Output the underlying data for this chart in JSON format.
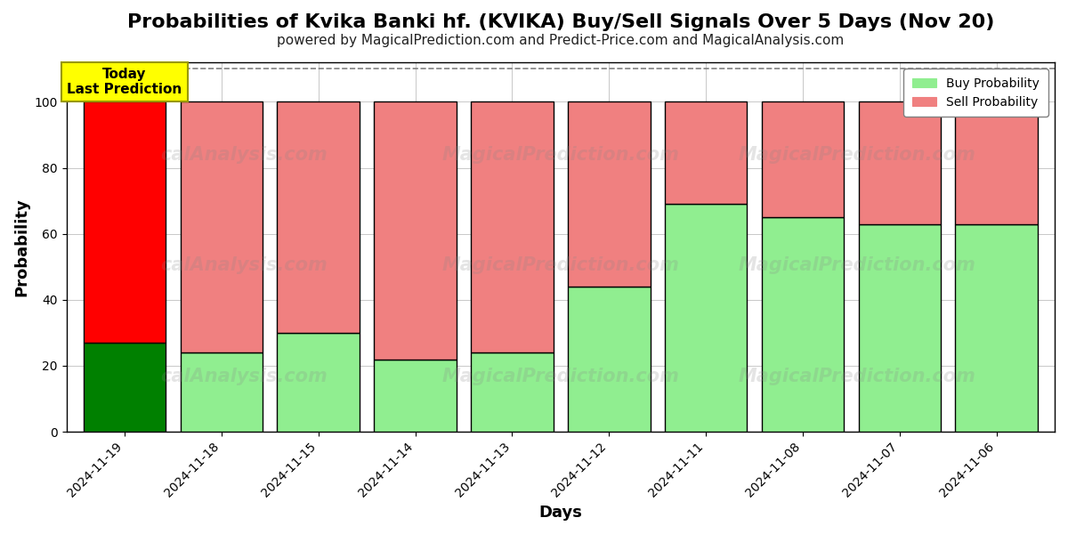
{
  "title": "Probabilities of Kvika Banki hf. (KVIKA) Buy/Sell Signals Over 5 Days (Nov 20)",
  "subtitle": "powered by MagicalPrediction.com and Predict-Price.com and MagicalAnalysis.com",
  "xlabel": "Days",
  "ylabel": "Probability",
  "dates": [
    "2024-11-19",
    "2024-11-18",
    "2024-11-15",
    "2024-11-14",
    "2024-11-13",
    "2024-11-12",
    "2024-11-11",
    "2024-11-08",
    "2024-11-07",
    "2024-11-06"
  ],
  "buy_values": [
    27,
    24,
    30,
    22,
    24,
    44,
    69,
    65,
    63,
    63
  ],
  "sell_values": [
    73,
    76,
    70,
    78,
    76,
    56,
    31,
    35,
    37,
    37
  ],
  "buy_color_today": "#008000",
  "sell_color_today": "#FF0000",
  "buy_color_rest": "#90EE90",
  "sell_color_rest": "#F08080",
  "bar_edge_color": "#000000",
  "ylim": [
    0,
    112
  ],
  "yticks": [
    0,
    20,
    40,
    60,
    80,
    100
  ],
  "dashed_line_y": 110,
  "legend_labels": [
    "Buy Probability",
    "Sell Probability"
  ],
  "annotation_text": "Today\nLast Prediction",
  "annotation_bg": "#FFFF00",
  "watermark_lines": [
    "calAnalysis.com",
    "MagicalPrediction.com",
    "calAnalysis.com",
    "MagicalPrediction.com",
    "calAnalysis.com",
    "MagicalPrediction.com"
  ],
  "title_fontsize": 16,
  "subtitle_fontsize": 11
}
